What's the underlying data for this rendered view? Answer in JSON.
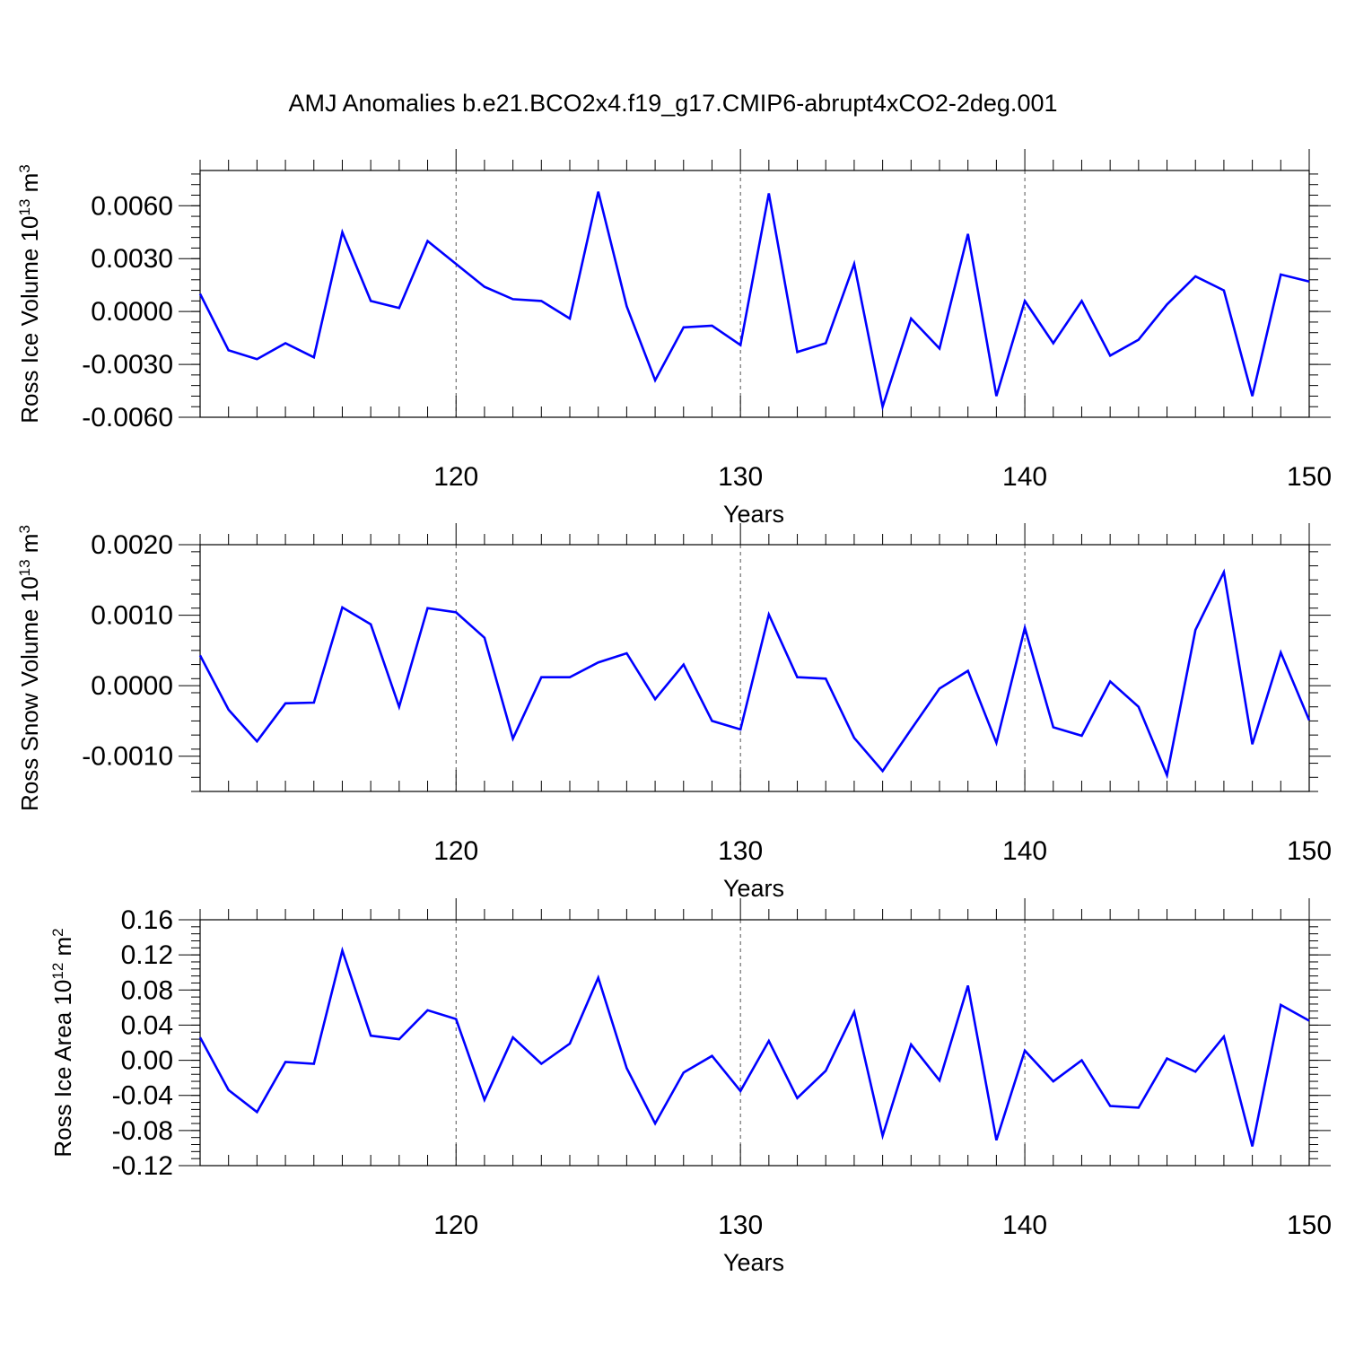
{
  "title": "AMJ Anomalies b.e21.BCO2x4.f19_g17.CMIP6-abrupt4xCO2-2deg.001",
  "colors": {
    "line": "#0000ff",
    "axis": "#000000",
    "grid": "#000000"
  },
  "chart_data": [
    {
      "type": "line",
      "title": "",
      "xlabel": "Years",
      "ylabel": "Ross Ice Volume",
      "ylabel_unit": {
        "base": "10",
        "exp": "13",
        "unit": "m",
        "unit_exp": "3"
      },
      "xlim": [
        111,
        150
      ],
      "ylim": [
        -0.006,
        0.008
      ],
      "xticks": [
        120,
        130,
        140,
        150
      ],
      "xtick_labels": [
        "120",
        "130",
        "140",
        "150"
      ],
      "yticks": [
        -0.006,
        -0.003,
        0.0,
        0.003,
        0.006
      ],
      "ytick_labels": [
        "-0.0060",
        "-0.0030",
        "0.0000",
        "0.0030",
        "0.0060"
      ],
      "grid_x": [
        120,
        130,
        140
      ],
      "x": [
        111,
        112,
        113,
        114,
        115,
        116,
        117,
        118,
        119,
        120,
        121,
        122,
        123,
        124,
        125,
        126,
        127,
        128,
        129,
        130,
        131,
        132,
        133,
        134,
        135,
        136,
        137,
        138,
        139,
        140,
        141,
        142,
        143,
        144,
        145,
        146,
        147,
        148,
        149,
        150
      ],
      "series": [
        {
          "values": [
            0.001,
            -0.0022,
            -0.0027,
            -0.0018,
            -0.0026,
            0.0045,
            0.0006,
            0.0002,
            0.004,
            0.0027,
            0.0014,
            0.0007,
            0.0006,
            -0.0004,
            0.0068,
            0.0003,
            -0.0039,
            -0.0009,
            -0.0008,
            -0.0019,
            0.0067,
            -0.0023,
            -0.0018,
            0.0027,
            -0.0054,
            -0.0004,
            -0.0021,
            0.0044,
            -0.0048,
            0.0006,
            -0.0018,
            0.0006,
            -0.0025,
            -0.0016,
            0.0004,
            0.002,
            0.0012,
            -0.0048,
            0.0021,
            0.0017
          ]
        }
      ]
    },
    {
      "type": "line",
      "title": "",
      "xlabel": "Years",
      "ylabel": "Ross Snow Volume",
      "ylabel_unit": {
        "base": "10",
        "exp": "13",
        "unit": "m",
        "unit_exp": "3"
      },
      "xlim": [
        111,
        150
      ],
      "ylim": [
        -0.0015,
        0.002
      ],
      "xticks": [
        120,
        130,
        140,
        150
      ],
      "xtick_labels": [
        "120",
        "130",
        "140",
        "150"
      ],
      "yticks": [
        -0.001,
        0.0,
        0.001,
        0.002
      ],
      "ytick_labels": [
        "-0.0010",
        "0.0000",
        "0.0010",
        "0.0020"
      ],
      "grid_x": [
        120,
        130,
        140
      ],
      "x": [
        111,
        112,
        113,
        114,
        115,
        116,
        117,
        118,
        119,
        120,
        121,
        122,
        123,
        124,
        125,
        126,
        127,
        128,
        129,
        130,
        131,
        132,
        133,
        134,
        135,
        136,
        137,
        138,
        139,
        140,
        141,
        142,
        143,
        144,
        145,
        146,
        147,
        148,
        149,
        150
      ],
      "series": [
        {
          "values": [
            0.00043,
            -0.00034,
            -0.00079,
            -0.00025,
            -0.00024,
            0.00111,
            0.00087,
            -0.0003,
            0.0011,
            0.00104,
            0.00068,
            -0.00075,
            0.00012,
            0.00012,
            0.00033,
            0.00046,
            -0.00019,
            0.0003,
            -0.0005,
            -0.00062,
            0.00101,
            0.00012,
            0.0001,
            -0.00074,
            -0.00121,
            -0.00062,
            -4e-05,
            0.00021,
            -0.00081,
            0.00082,
            -0.00059,
            -0.00071,
            6e-05,
            -0.0003,
            -0.00127,
            0.00079,
            0.00161,
            -0.00083,
            0.00047,
            -0.00049
          ]
        }
      ]
    },
    {
      "type": "line",
      "title": "",
      "xlabel": "Years",
      "ylabel": "Ross Ice Area",
      "ylabel_unit": {
        "base": "10",
        "exp": "12",
        "unit": "m",
        "unit_exp": "2"
      },
      "xlim": [
        111,
        150
      ],
      "ylim": [
        -0.12,
        0.16
      ],
      "xticks": [
        120,
        130,
        140,
        150
      ],
      "xtick_labels": [
        "120",
        "130",
        "140",
        "150"
      ],
      "yticks": [
        -0.12,
        -0.08,
        -0.04,
        0.0,
        0.04,
        0.08,
        0.12,
        0.16
      ],
      "ytick_labels": [
        "-0.12",
        "-0.08",
        "-0.04",
        "0.00",
        "0.04",
        "0.08",
        "0.12",
        "0.16"
      ],
      "grid_x": [
        120,
        130,
        140
      ],
      "x": [
        111,
        112,
        113,
        114,
        115,
        116,
        117,
        118,
        119,
        120,
        121,
        122,
        123,
        124,
        125,
        126,
        127,
        128,
        129,
        130,
        131,
        132,
        133,
        134,
        135,
        136,
        137,
        138,
        139,
        140,
        141,
        142,
        143,
        144,
        145,
        146,
        147,
        148,
        149,
        150
      ],
      "series": [
        {
          "values": [
            0.026,
            -0.034,
            -0.059,
            -0.002,
            -0.004,
            0.125,
            0.028,
            0.024,
            0.057,
            0.047,
            -0.045,
            0.026,
            -0.004,
            0.019,
            0.094,
            -0.009,
            -0.072,
            -0.014,
            0.005,
            -0.035,
            0.022,
            -0.043,
            -0.012,
            0.055,
            -0.086,
            0.018,
            -0.023,
            0.085,
            -0.091,
            0.011,
            -0.024,
            0.0,
            -0.052,
            -0.054,
            0.002,
            -0.013,
            0.027,
            -0.098,
            0.063,
            0.045
          ]
        }
      ]
    }
  ]
}
